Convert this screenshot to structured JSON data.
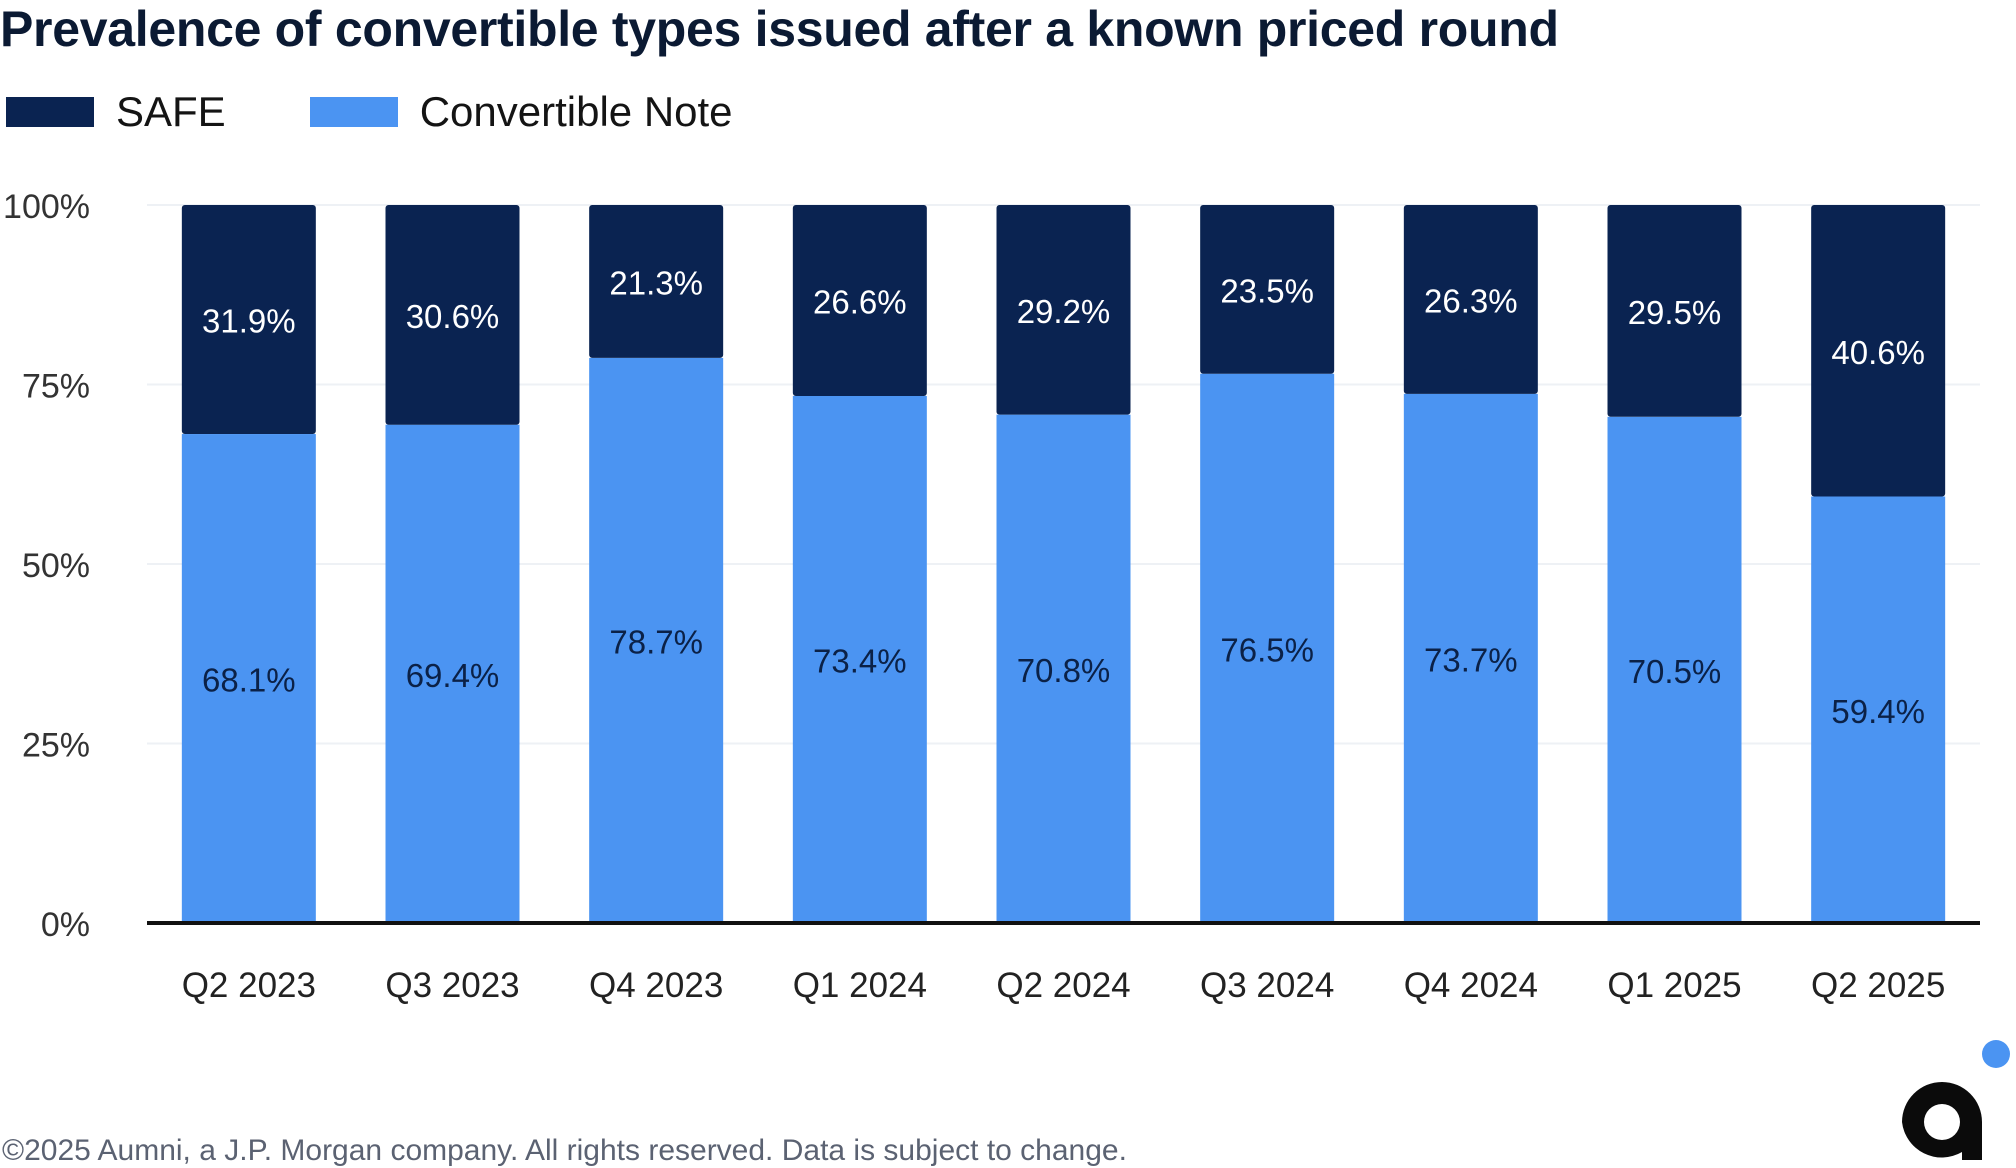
{
  "title": "Prevalence of convertible types issued after a known priced round",
  "legend": {
    "safe_label": "SAFE",
    "note_label": "Convertible Note"
  },
  "colors": {
    "safe": "#0a2351",
    "convertible_note": "#4b94f2",
    "safe_text": "#ffffff",
    "note_text": "#0b2147",
    "grid": "#eef1f5",
    "axis": "#111111",
    "logo_dot": "#4b94f2",
    "logo_mark": "#0b0b0b"
  },
  "chart_data": {
    "type": "bar",
    "stacked": true,
    "percent_stacked": true,
    "categories": [
      "Q2 2023",
      "Q3 2023",
      "Q4 2023",
      "Q1 2024",
      "Q2 2024",
      "Q3 2024",
      "Q4 2024",
      "Q1 2025",
      "Q2 2025"
    ],
    "series": [
      {
        "name": "Convertible Note",
        "values": [
          68.1,
          69.4,
          78.7,
          73.4,
          70.8,
          76.5,
          73.7,
          70.5,
          59.4
        ],
        "labels": [
          "68.1%",
          "69.4%",
          "78.7%",
          "73.4%",
          "70.8%",
          "76.5%",
          "73.7%",
          "70.5%",
          "59.4%"
        ]
      },
      {
        "name": "SAFE",
        "values": [
          31.9,
          30.6,
          21.3,
          26.6,
          29.2,
          23.5,
          26.3,
          29.5,
          40.6
        ],
        "labels": [
          "31.9%",
          "30.6%",
          "21.3%",
          "26.6%",
          "29.2%",
          "23.5%",
          "26.3%",
          "29.5%",
          "40.6%"
        ]
      }
    ],
    "yticks": [
      {
        "value": 100,
        "label": "100%"
      },
      {
        "value": 75,
        "label": "75%"
      },
      {
        "value": 50,
        "label": "50%"
      },
      {
        "value": 25,
        "label": "25%"
      },
      {
        "value": 0,
        "label": "0%"
      }
    ],
    "ylim": [
      0,
      100
    ],
    "grid": true,
    "legend_position": "top-left",
    "title": "Prevalence of convertible types issued after a known priced round",
    "xlabel": "",
    "ylabel": ""
  },
  "footer": "©2025 Aumni, a J.P. Morgan company. All rights reserved. Data is subject to change."
}
